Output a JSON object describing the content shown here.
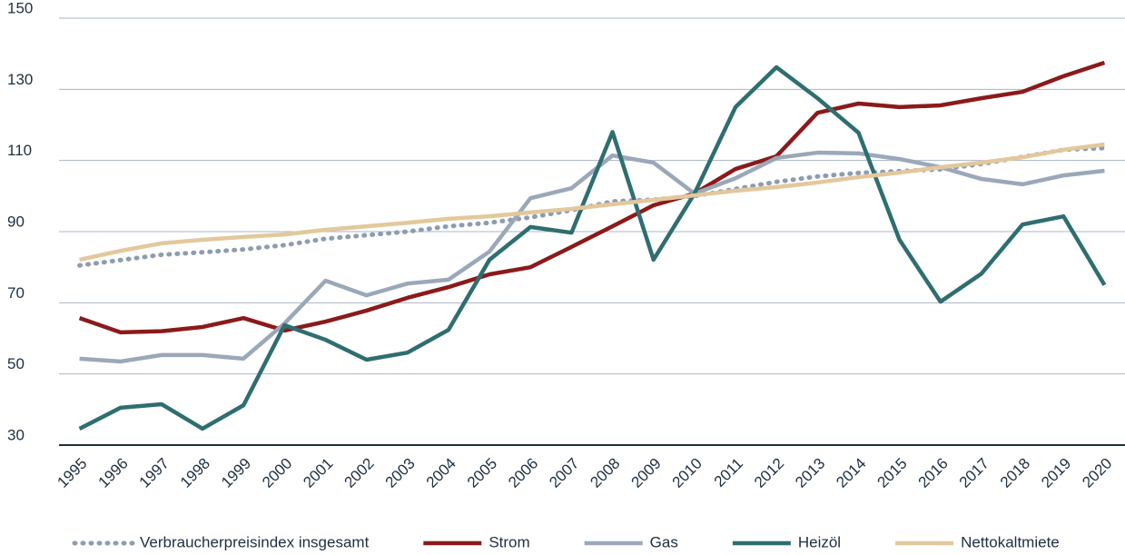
{
  "chart_data": {
    "type": "line",
    "categories": [
      "1995",
      "1996",
      "1997",
      "1998",
      "1999",
      "2000",
      "2001",
      "2002",
      "2003",
      "2004",
      "2005",
      "2006",
      "2007",
      "2008",
      "2009",
      "2010",
      "2011",
      "2012",
      "2013",
      "2014",
      "2015",
      "2016",
      "2017",
      "2018",
      "2019",
      "2020"
    ],
    "series": [
      {
        "name": "Verbraucherpreisindex insgesamt",
        "color": "#8d9cb2",
        "style": "dotted",
        "values": [
          80.5,
          82,
          83.5,
          84.2,
          85,
          86.2,
          88,
          89,
          90,
          91.5,
          92.5,
          94,
          96,
          98.5,
          99,
          100,
          102,
          104,
          105.5,
          106.5,
          107,
          107.5,
          109,
          111,
          113,
          113.5
        ]
      },
      {
        "name": "Strom",
        "color": "#8b1a1a",
        "style": "solid",
        "values": [
          65.7,
          61.7,
          62,
          63.2,
          65.7,
          62.2,
          64.7,
          67.8,
          71.4,
          74.4,
          78,
          80,
          85.7,
          91.5,
          97.4,
          100.7,
          107.6,
          111.2,
          123.4,
          126,
          125,
          125.5,
          127.5,
          129.3,
          133.7,
          137.5
        ]
      },
      {
        "name": "Gas",
        "color": "#9aa8b9",
        "style": "solid",
        "values": [
          54.3,
          53.5,
          55.3,
          55.3,
          54.3,
          64.2,
          76.2,
          72.1,
          75.4,
          76.5,
          84.4,
          99.4,
          102.2,
          111.4,
          109.4,
          100.7,
          105,
          110.7,
          112.2,
          112,
          110.4,
          108.1,
          104.8,
          103.3,
          105.8,
          107.1
        ]
      },
      {
        "name": "Heizöl",
        "color": "#2f6e70",
        "style": "solid",
        "values": [
          34.6,
          40.5,
          41.5,
          34.6,
          41.2,
          63.7,
          59.6,
          54,
          56,
          62.4,
          82.1,
          91.3,
          89.7,
          118,
          82.1,
          100.7,
          125,
          136.2,
          127.5,
          117.8,
          87.7,
          70.3,
          78.2,
          92,
          94.3,
          75
        ]
      },
      {
        "name": "Nettokaltmiete",
        "color": "#e3c89c",
        "style": "solid",
        "values": [
          82.1,
          84.6,
          86.7,
          87.7,
          88.5,
          89.2,
          90.5,
          91.5,
          92.5,
          93.6,
          94.3,
          95.4,
          96.4,
          97.7,
          98.9,
          100.2,
          101.5,
          102.5,
          103.8,
          105.3,
          106.6,
          108.1,
          109.4,
          110.9,
          113,
          114.5
        ]
      }
    ],
    "ylim": [
      30,
      150
    ],
    "yticks": [
      30,
      50,
      70,
      90,
      110,
      130,
      150
    ],
    "grid": true,
    "legend": "bottom"
  }
}
